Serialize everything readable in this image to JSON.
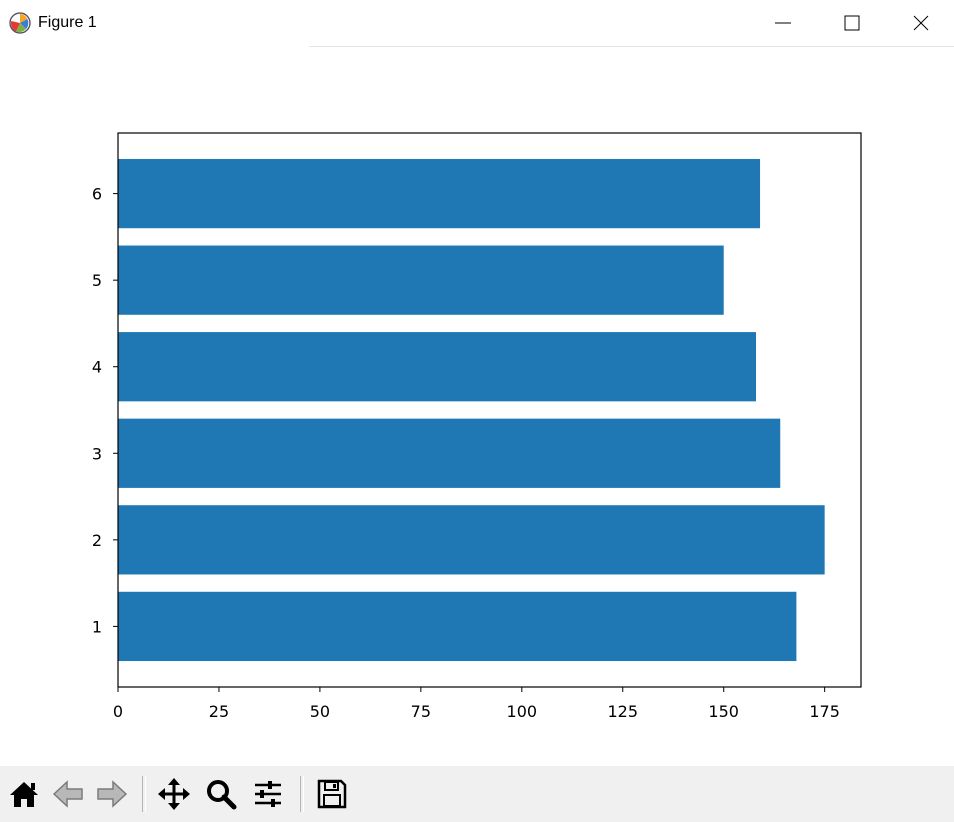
{
  "window": {
    "title": "Figure 1",
    "icon": "matplotlib-icon",
    "controls": [
      "minimize-icon",
      "maximize-icon",
      "close-icon"
    ]
  },
  "toolbar": {
    "buttons": [
      "home-icon",
      "back-arrow-icon",
      "forward-arrow-icon",
      "pan-icon",
      "zoom-icon",
      "configure-subplots-icon",
      "save-icon"
    ]
  },
  "chart_data": {
    "type": "bar",
    "orientation": "horizontal",
    "categories": [
      "1",
      "2",
      "3",
      "4",
      "5",
      "6"
    ],
    "values": [
      168,
      175,
      164,
      158,
      150,
      159
    ],
    "color": "#1f77b4",
    "title": "",
    "xlabel": "",
    "ylabel": "",
    "xlim": [
      0,
      184
    ],
    "ylim": [
      0.3,
      6.7
    ],
    "xticks": [
      0,
      25,
      50,
      75,
      100,
      125,
      150,
      175
    ],
    "xtick_labels": [
      "0",
      "25",
      "50",
      "75",
      "100",
      "125",
      "150",
      "175"
    ],
    "ytick_labels": [
      "1",
      "2",
      "3",
      "4",
      "5",
      "6"
    ],
    "grid": false,
    "legend": false
  }
}
